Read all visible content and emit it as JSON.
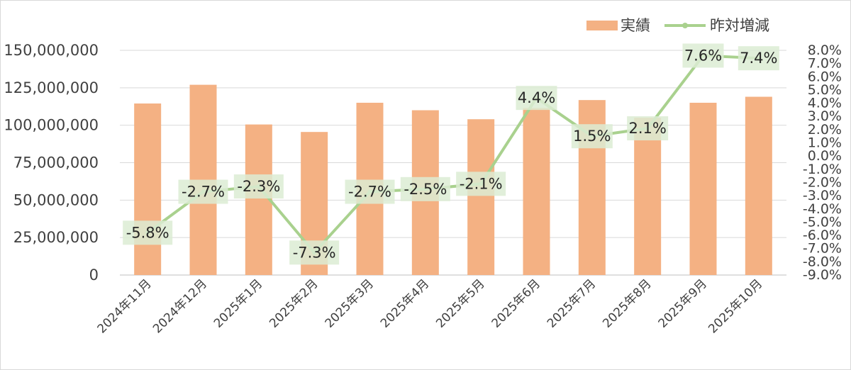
{
  "chart_data": {
    "type": "bar",
    "categories": [
      "2024年11月",
      "2024年12月",
      "2025年1月",
      "2025年2月",
      "2025年3月",
      "2025年4月",
      "2025年5月",
      "2025年6月",
      "2025年7月",
      "2025年8月",
      "2025年9月",
      "2025年10月"
    ],
    "series": [
      {
        "name": "実績",
        "type": "bar",
        "axis": "left",
        "color": "#f4b183",
        "values": [
          114500000,
          127000000,
          100500000,
          95500000,
          115000000,
          110000000,
          104000000,
          111500000,
          116800000,
          105000000,
          115000000,
          119000000
        ]
      },
      {
        "name": "昨対増減",
        "type": "line",
        "axis": "right",
        "color": "#a9d18e",
        "values": [
          -5.8,
          -2.7,
          -2.3,
          -7.3,
          -2.7,
          -2.5,
          -2.1,
          4.4,
          1.5,
          2.1,
          7.6,
          7.4
        ],
        "labels": [
          "-5.8%",
          "-2.7%",
          "-2.3%",
          "-7.3%",
          "-2.7%",
          "-2.5%",
          "-2.1%",
          "4.4%",
          "1.5%",
          "2.1%",
          "7.6%",
          "7.4%"
        ]
      }
    ],
    "y_left": {
      "min": 0,
      "max": 150000000,
      "ticks": [
        "0",
        "25,000,000",
        "50,000,000",
        "75,000,000",
        "100,000,000",
        "125,000,000",
        "150,000,000"
      ],
      "tick_values": [
        0,
        25000000,
        50000000,
        75000000,
        100000000,
        125000000,
        150000000
      ]
    },
    "y_right": {
      "min": -9,
      "max": 8,
      "ticks": [
        "-9.0%",
        "-8.0%",
        "-7.0%",
        "-6.0%",
        "-5.0%",
        "-4.0%",
        "-3.0%",
        "-2.0%",
        "-1.0%",
        "0.0%",
        "1.0%",
        "2.0%",
        "3.0%",
        "4.0%",
        "5.0%",
        "6.0%",
        "7.0%",
        "8.0%"
      ],
      "tick_values": [
        -9,
        -8,
        -7,
        -6,
        -5,
        -4,
        -3,
        -2,
        -1,
        0,
        1,
        2,
        3,
        4,
        5,
        6,
        7,
        8
      ]
    },
    "grid": true,
    "legend": {
      "position": "top-right",
      "items": [
        {
          "label": "実績",
          "marker": "bar",
          "color": "#f4b183"
        },
        {
          "label": "昨対増減",
          "marker": "line",
          "color": "#a9d18e"
        }
      ]
    },
    "colors": {
      "grid": "#d9d9d9",
      "label_box": "#dcecd3",
      "text": "#404040"
    }
  }
}
